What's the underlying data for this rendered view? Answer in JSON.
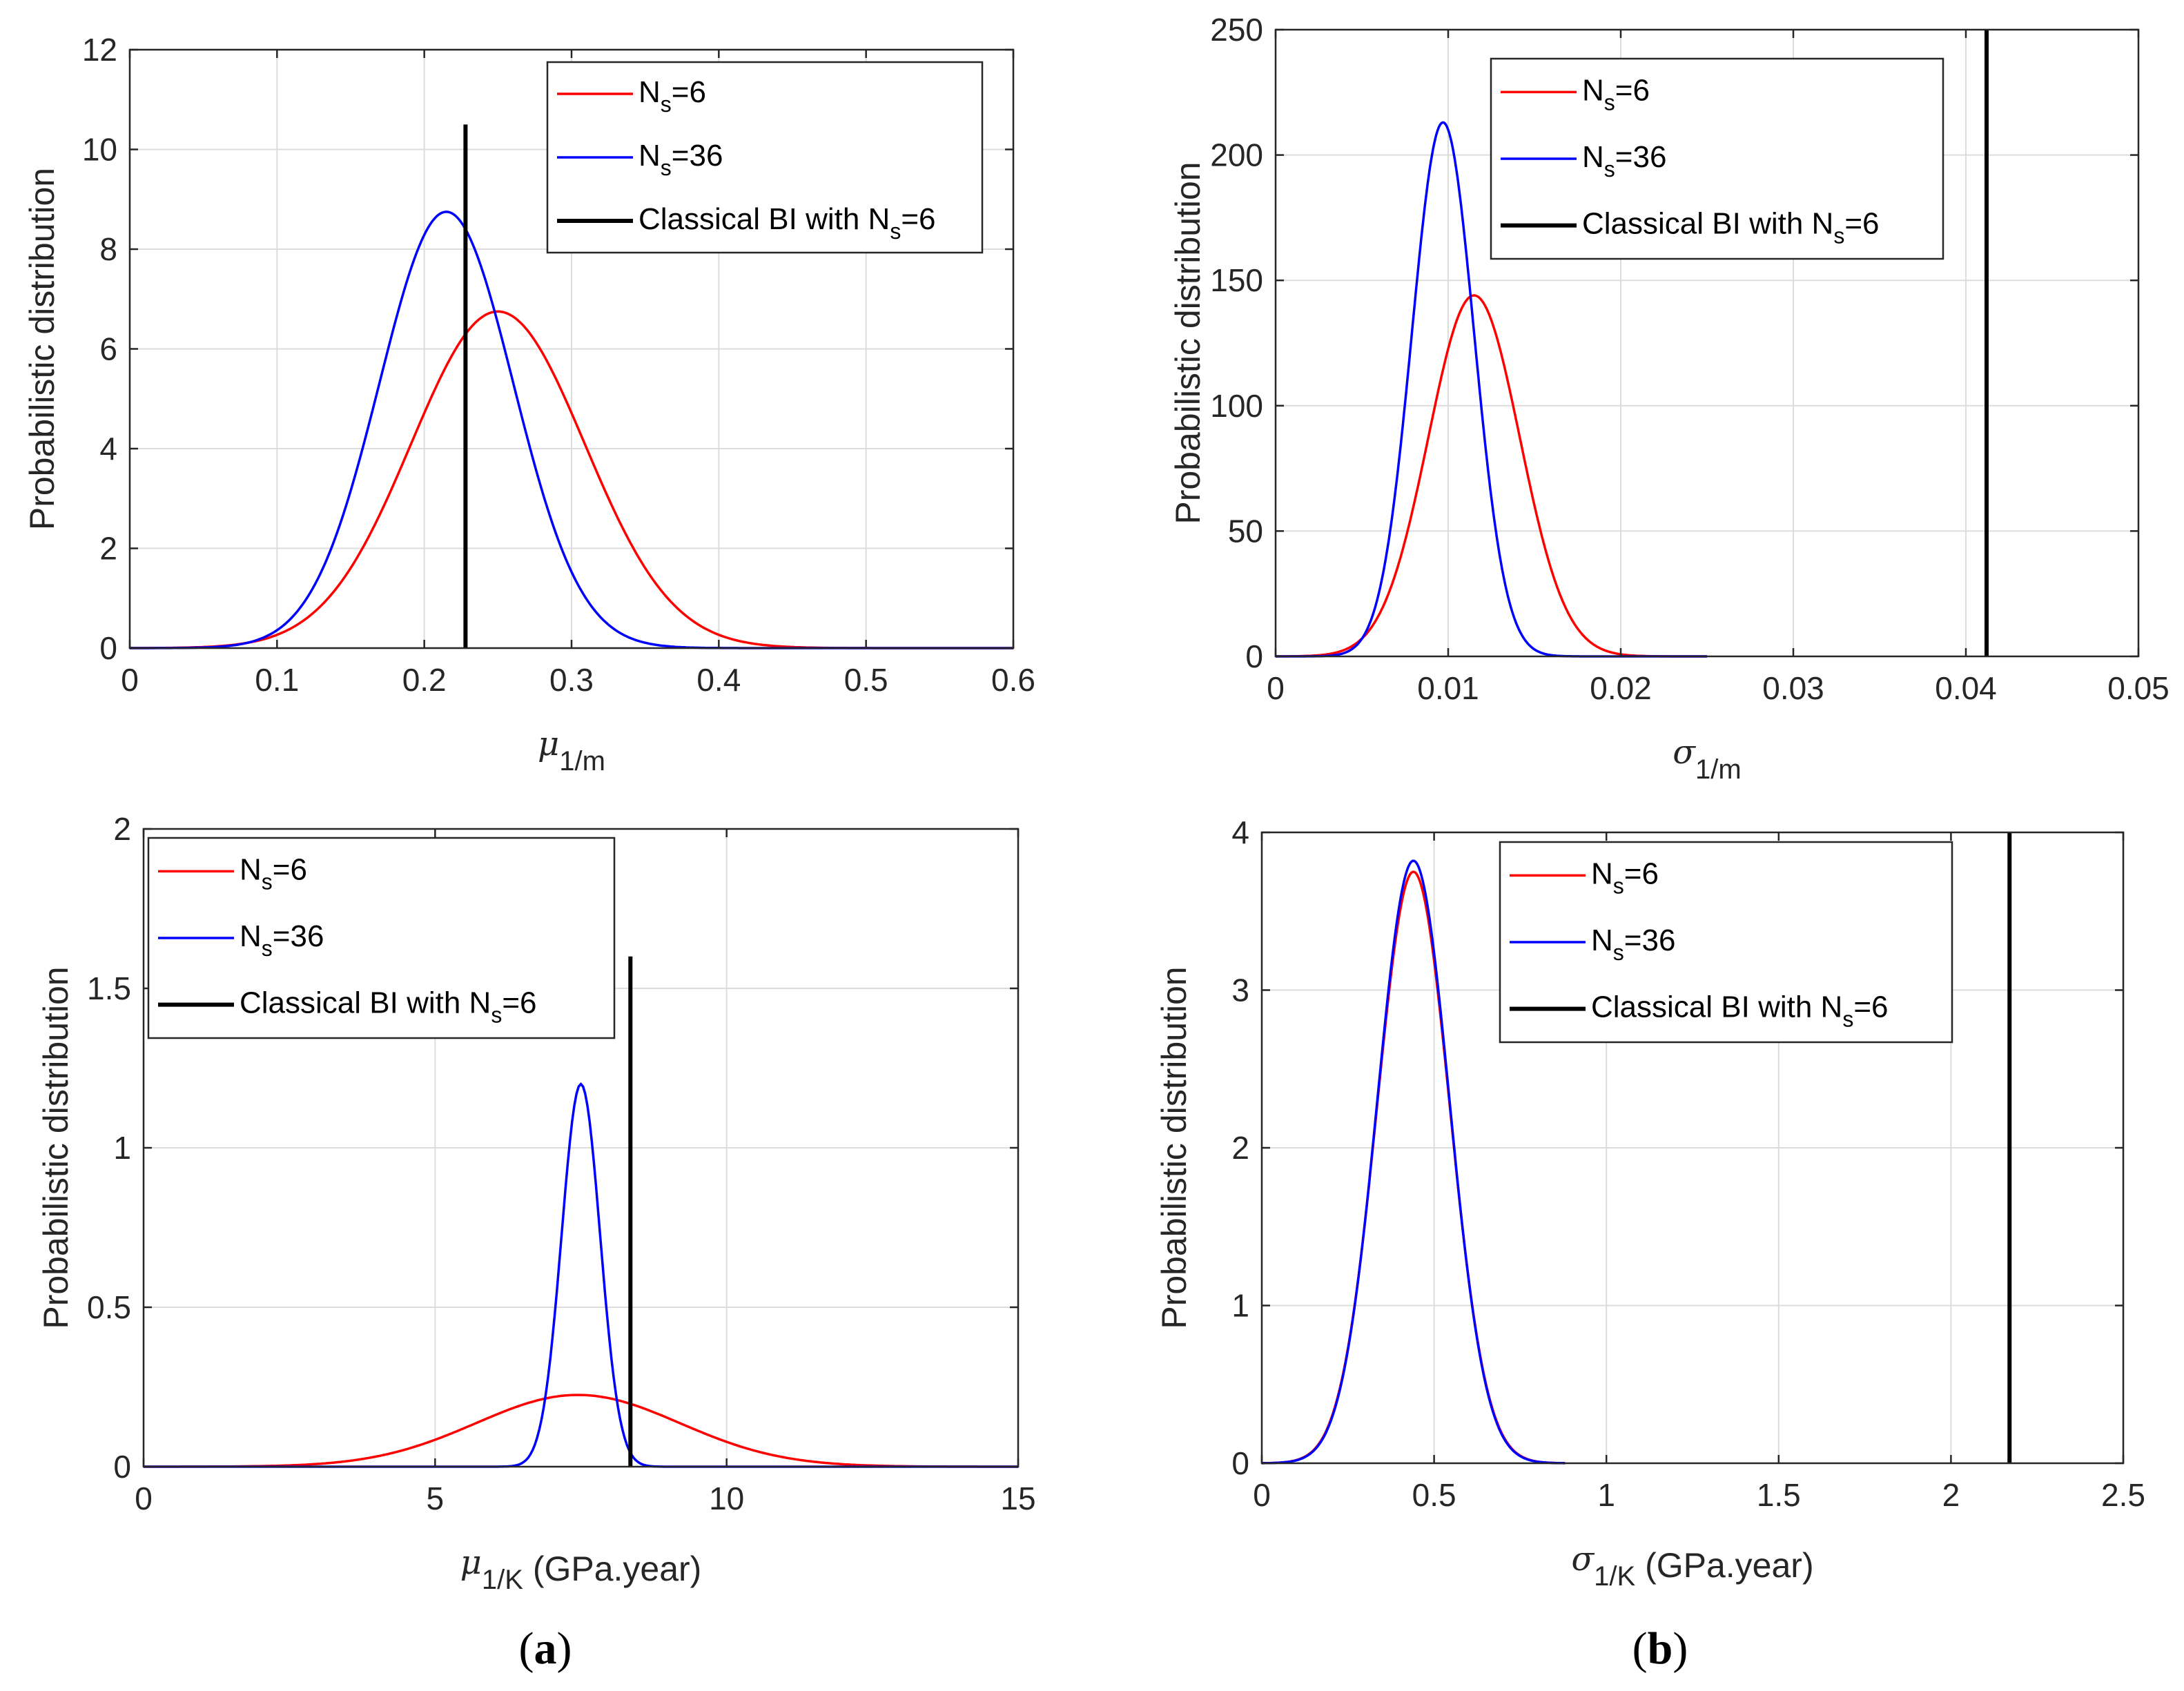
{
  "figure": {
    "panel_labels": [
      {
        "open": "(",
        "letter": "a",
        "close": ")"
      },
      {
        "open": "(",
        "letter": "b",
        "close": ")"
      }
    ]
  },
  "colors": {
    "ns6": "#ff0000",
    "ns36": "#0000ff",
    "classical": "#000000",
    "grid": "#dcdcdc",
    "axes": "#262626"
  },
  "chart_data": [
    {
      "type": "line",
      "xlabel": {
        "symbol": "μ",
        "sub": "1/m",
        "suffix": ""
      },
      "ylabel": "Probabilistic distribution",
      "xlim": [
        0,
        0.6
      ],
      "ylim": [
        0,
        12
      ],
      "xticks": [
        0,
        0.1,
        0.2,
        0.3,
        0.4,
        0.5,
        0.6
      ],
      "yticks": [
        0,
        2,
        4,
        6,
        8,
        10,
        12
      ],
      "xtick_labels": [
        "0",
        "0.1",
        "0.2",
        "0.3",
        "0.4",
        "0.5",
        "0.6"
      ],
      "ytick_labels": [
        "0",
        "2",
        "4",
        "6",
        "8",
        "10",
        "12"
      ],
      "grid": true,
      "legend_location": "top-right",
      "series": [
        {
          "name": "N",
          "sub": "s",
          "suffix": "=6",
          "color": "#ff0000",
          "peak_x": 0.25,
          "peak_y": 6.75,
          "sigma": 0.059,
          "x_range": [
            0,
            0.6
          ]
        },
        {
          "name": "N",
          "sub": "s",
          "suffix": "=36",
          "color": "#0000ff",
          "peak_x": 0.215,
          "peak_y": 8.75,
          "sigma": 0.0455,
          "x_range": [
            0,
            0.6
          ]
        }
      ],
      "vertical_line": {
        "name": "Classical BI with N",
        "sub": "s",
        "suffix": "=6",
        "x": 0.228,
        "y_top": 10.5,
        "color": "#000000"
      }
    },
    {
      "type": "line",
      "xlabel": {
        "symbol": "σ",
        "sub": "1/m",
        "suffix": ""
      },
      "ylabel": "Probabilistic distribution",
      "xlim": [
        0,
        0.05
      ],
      "ylim": [
        0,
        250
      ],
      "xticks": [
        0,
        0.01,
        0.02,
        0.03,
        0.04,
        0.05
      ],
      "yticks": [
        0,
        50,
        100,
        150,
        200,
        250
      ],
      "xtick_labels": [
        "0",
        "0.01",
        "0.02",
        "0.03",
        "0.04",
        "0.05"
      ],
      "ytick_labels": [
        "0",
        "50",
        "100",
        "150",
        "200",
        "250"
      ],
      "grid": true,
      "legend_location": "top-right",
      "series": [
        {
          "name": "N",
          "sub": "s",
          "suffix": "=6",
          "color": "#ff0000",
          "peak_x": 0.0115,
          "peak_y": 144,
          "sigma": 0.00265,
          "x_range": [
            0,
            0.025
          ]
        },
        {
          "name": "N",
          "sub": "s",
          "suffix": "=36",
          "color": "#0000ff",
          "peak_x": 0.0097,
          "peak_y": 213,
          "sigma": 0.0018,
          "x_range": [
            0,
            0.025
          ]
        }
      ],
      "vertical_line": {
        "name": "Classical BI with N",
        "sub": "s",
        "suffix": "=6",
        "x": 0.0412,
        "y_top": 250,
        "color": "#000000"
      }
    },
    {
      "type": "line",
      "xlabel": {
        "symbol": "μ",
        "sub": "1/K",
        "suffix": " (GPa.year)"
      },
      "ylabel": "Probabilistic distribution",
      "xlim": [
        0,
        15
      ],
      "ylim": [
        0,
        2
      ],
      "xticks": [
        0,
        5,
        10,
        15
      ],
      "yticks": [
        0,
        0.5,
        1,
        1.5,
        2
      ],
      "xtick_labels": [
        "0",
        "5",
        "10",
        "15"
      ],
      "ytick_labels": [
        "0",
        "0.5",
        "1",
        "1.5",
        "2"
      ],
      "grid": true,
      "legend_location": "top-left",
      "series": [
        {
          "name": "N",
          "sub": "s",
          "suffix": "=6",
          "color": "#ff0000",
          "peak_x": 7.45,
          "peak_y": 0.225,
          "sigma": 1.75,
          "x_range": [
            0,
            15
          ]
        },
        {
          "name": "N",
          "sub": "s",
          "suffix": "=36",
          "color": "#0000ff",
          "peak_x": 7.5,
          "peak_y": 1.2,
          "sigma": 0.33,
          "x_range": [
            0,
            15
          ]
        }
      ],
      "vertical_line": {
        "name": "Classical BI with N",
        "sub": "s",
        "suffix": "=6",
        "x": 8.35,
        "y_top": 1.6,
        "color": "#000000"
      }
    },
    {
      "type": "line",
      "xlabel": {
        "symbol": "σ",
        "sub": "1/K",
        "suffix": " (GPa.year)"
      },
      "ylabel": "Probabilistic distribution",
      "xlim": [
        0,
        2.5
      ],
      "ylim": [
        0,
        4
      ],
      "xticks": [
        0,
        0.5,
        1,
        1.5,
        2,
        2.5
      ],
      "yticks": [
        0,
        1,
        2,
        3,
        4
      ],
      "xtick_labels": [
        "0",
        "0.5",
        "1",
        "1.5",
        "2",
        "2.5"
      ],
      "ytick_labels": [
        "0",
        "1",
        "2",
        "3",
        "4"
      ],
      "grid": true,
      "legend_location": "top-right",
      "series": [
        {
          "name": "N",
          "sub": "s",
          "suffix": "=6",
          "color": "#ff0000",
          "peak_x": 0.44,
          "peak_y": 3.75,
          "sigma": 0.105,
          "x_range": [
            0,
            0.88
          ]
        },
        {
          "name": "N",
          "sub": "s",
          "suffix": "=36",
          "color": "#0000ff",
          "peak_x": 0.44,
          "peak_y": 3.82,
          "sigma": 0.104,
          "x_range": [
            0,
            0.88
          ]
        }
      ],
      "vertical_line": {
        "name": "Classical BI with N",
        "sub": "s",
        "suffix": "=6",
        "x": 2.17,
        "y_top": 4,
        "color": "#000000"
      }
    }
  ]
}
